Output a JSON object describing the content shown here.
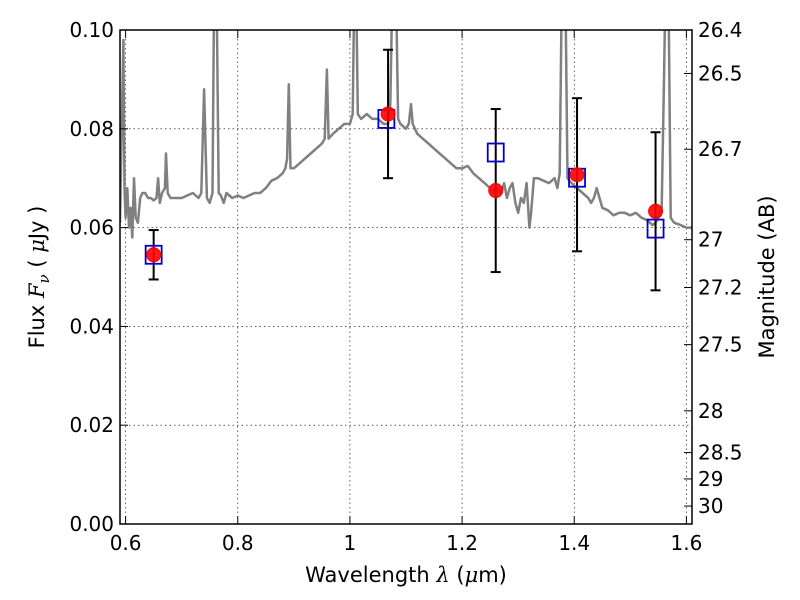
{
  "chart_data": {
    "type": "scatter",
    "xlabel": {
      "prefix": "Wavelength ",
      "symbol": "λ",
      "unit_open": " (",
      "unit_mu": "μ",
      "unit_rest": "m)"
    },
    "ylabel": {
      "prefix": "Flux ",
      "symbol": "F",
      "sub": "ν",
      "unit_open": " ( ",
      "unit_mu": "μ",
      "unit_rest": "Jy )"
    },
    "y2label": "Magnitude (AB)",
    "xlim": [
      0.59,
      1.61
    ],
    "ylim": [
      0.0,
      0.1
    ],
    "grid": true,
    "x_ticks": [
      {
        "value": 0.6,
        "label": "0.6"
      },
      {
        "value": 0.8,
        "label": "0.8"
      },
      {
        "value": 1.0,
        "label": "1"
      },
      {
        "value": 1.2,
        "label": "1.2"
      },
      {
        "value": 1.4,
        "label": "1.4"
      },
      {
        "value": 1.6,
        "label": "1.6"
      }
    ],
    "y_ticks": [
      {
        "value": 0.0,
        "label": "0.00"
      },
      {
        "value": 0.02,
        "label": "0.02"
      },
      {
        "value": 0.04,
        "label": "0.04"
      },
      {
        "value": 0.06,
        "label": "0.06"
      },
      {
        "value": 0.08,
        "label": "0.08"
      },
      {
        "value": 0.1,
        "label": "0.10"
      }
    ],
    "y2_ticks": [
      {
        "value": 26.4,
        "label": "26.4"
      },
      {
        "value": 26.5,
        "label": "26.5"
      },
      {
        "value": 26.7,
        "label": "26.7"
      },
      {
        "value": 27.0,
        "label": "27"
      },
      {
        "value": 27.2,
        "label": "27.2"
      },
      {
        "value": 27.5,
        "label": "27.5"
      },
      {
        "value": 28.0,
        "label": "28"
      },
      {
        "value": 28.5,
        "label": "28.5"
      },
      {
        "value": 29.0,
        "label": "29"
      },
      {
        "value": 30.0,
        "label": "30"
      }
    ],
    "model_spectrum": {
      "color": "#808080",
      "points": [
        [
          0.59,
          0.061
        ],
        [
          0.593,
          0.08
        ],
        [
          0.596,
          0.098
        ],
        [
          0.598,
          0.068
        ],
        [
          0.6,
          0.062
        ],
        [
          0.603,
          0.068
        ],
        [
          0.606,
          0.06
        ],
        [
          0.609,
          0.064
        ],
        [
          0.612,
          0.058
        ],
        [
          0.615,
          0.07
        ],
        [
          0.618,
          0.062
        ],
        [
          0.622,
          0.061
        ],
        [
          0.626,
          0.066
        ],
        [
          0.63,
          0.067
        ],
        [
          0.635,
          0.067
        ],
        [
          0.64,
          0.066
        ],
        [
          0.645,
          0.066
        ],
        [
          0.65,
          0.0655
        ],
        [
          0.655,
          0.066
        ],
        [
          0.658,
          0.07
        ],
        [
          0.661,
          0.065
        ],
        [
          0.665,
          0.067
        ],
        [
          0.67,
          0.068
        ],
        [
          0.672,
          0.075
        ],
        [
          0.675,
          0.067
        ],
        [
          0.68,
          0.066
        ],
        [
          0.69,
          0.066
        ],
        [
          0.7,
          0.066
        ],
        [
          0.71,
          0.0665
        ],
        [
          0.72,
          0.067
        ],
        [
          0.73,
          0.066
        ],
        [
          0.735,
          0.067
        ],
        [
          0.74,
          0.088
        ],
        [
          0.745,
          0.066
        ],
        [
          0.75,
          0.065
        ],
        [
          0.755,
          0.067
        ],
        [
          0.758,
          0.11
        ],
        [
          0.762,
          0.11
        ],
        [
          0.766,
          0.067
        ],
        [
          0.77,
          0.0665
        ],
        [
          0.775,
          0.065
        ],
        [
          0.78,
          0.067
        ],
        [
          0.79,
          0.066
        ],
        [
          0.8,
          0.0665
        ],
        [
          0.81,
          0.066
        ],
        [
          0.82,
          0.0665
        ],
        [
          0.83,
          0.067
        ],
        [
          0.84,
          0.067
        ],
        [
          0.85,
          0.068
        ],
        [
          0.86,
          0.0695
        ],
        [
          0.87,
          0.07
        ],
        [
          0.88,
          0.071
        ],
        [
          0.885,
          0.072
        ],
        [
          0.888,
          0.074
        ],
        [
          0.891,
          0.089
        ],
        [
          0.894,
          0.072
        ],
        [
          0.9,
          0.072
        ],
        [
          0.91,
          0.073
        ],
        [
          0.92,
          0.074
        ],
        [
          0.93,
          0.075
        ],
        [
          0.94,
          0.076
        ],
        [
          0.95,
          0.077
        ],
        [
          0.955,
          0.078
        ],
        [
          0.959,
          0.092
        ],
        [
          0.962,
          0.078
        ],
        [
          0.97,
          0.079
        ],
        [
          0.98,
          0.08
        ],
        [
          0.99,
          0.081
        ],
        [
          1.0,
          0.081
        ],
        [
          1.005,
          0.083
        ],
        [
          1.008,
          0.11
        ],
        [
          1.011,
          0.11
        ],
        [
          1.014,
          0.083
        ],
        [
          1.02,
          0.082
        ],
        [
          1.025,
          0.0825
        ],
        [
          1.03,
          0.083
        ],
        [
          1.04,
          0.082
        ],
        [
          1.05,
          0.082
        ],
        [
          1.06,
          0.081
        ],
        [
          1.068,
          0.081
        ],
        [
          1.072,
          0.085
        ],
        [
          1.076,
          0.11
        ],
        [
          1.082,
          0.11
        ],
        [
          1.086,
          0.082
        ],
        [
          1.09,
          0.081
        ],
        [
          1.1,
          0.08
        ],
        [
          1.105,
          0.081
        ],
        [
          1.109,
          0.085
        ],
        [
          1.112,
          0.081
        ],
        [
          1.12,
          0.079
        ],
        [
          1.13,
          0.078
        ],
        [
          1.14,
          0.077
        ],
        [
          1.15,
          0.076
        ],
        [
          1.16,
          0.075
        ],
        [
          1.17,
          0.074
        ],
        [
          1.18,
          0.073
        ],
        [
          1.19,
          0.072
        ],
        [
          1.2,
          0.072
        ],
        [
          1.21,
          0.0725
        ],
        [
          1.22,
          0.071
        ],
        [
          1.23,
          0.07
        ],
        [
          1.24,
          0.069
        ],
        [
          1.25,
          0.068
        ],
        [
          1.255,
          0.067
        ],
        [
          1.26,
          0.068
        ],
        [
          1.27,
          0.067
        ],
        [
          1.275,
          0.069
        ],
        [
          1.28,
          0.066
        ],
        [
          1.285,
          0.068
        ],
        [
          1.29,
          0.069
        ],
        [
          1.295,
          0.065
        ],
        [
          1.3,
          0.063
        ],
        [
          1.305,
          0.066
        ],
        [
          1.31,
          0.065
        ],
        [
          1.315,
          0.069
        ],
        [
          1.32,
          0.06
        ],
        [
          1.323,
          0.063
        ],
        [
          1.328,
          0.07
        ],
        [
          1.335,
          0.07
        ],
        [
          1.345,
          0.0695
        ],
        [
          1.355,
          0.069
        ],
        [
          1.365,
          0.07
        ],
        [
          1.37,
          0.068
        ],
        [
          1.374,
          0.071
        ],
        [
          1.378,
          0.11
        ],
        [
          1.384,
          0.11
        ],
        [
          1.388,
          0.07
        ],
        [
          1.395,
          0.069
        ],
        [
          1.405,
          0.068
        ],
        [
          1.415,
          0.067
        ],
        [
          1.425,
          0.066
        ],
        [
          1.43,
          0.065
        ],
        [
          1.435,
          0.066
        ],
        [
          1.44,
          0.068
        ],
        [
          1.445,
          0.066
        ],
        [
          1.45,
          0.064
        ],
        [
          1.46,
          0.0635
        ],
        [
          1.47,
          0.0625
        ],
        [
          1.48,
          0.063
        ],
        [
          1.49,
          0.063
        ],
        [
          1.5,
          0.0625
        ],
        [
          1.51,
          0.063
        ],
        [
          1.52,
          0.062
        ],
        [
          1.53,
          0.0615
        ],
        [
          1.54,
          0.0605
        ],
        [
          1.545,
          0.061
        ],
        [
          1.55,
          0.062
        ],
        [
          1.556,
          0.064
        ],
        [
          1.56,
          0.09
        ],
        [
          1.563,
          0.11
        ],
        [
          1.568,
          0.11
        ],
        [
          1.572,
          0.062
        ],
        [
          1.578,
          0.061
        ],
        [
          1.59,
          0.0605
        ],
        [
          1.6,
          0.06
        ],
        [
          1.61,
          0.06
        ]
      ]
    },
    "model_points": {
      "color": "#0000cc",
      "marker": "open-square",
      "points": [
        {
          "x": 0.65,
          "y": 0.0545
        },
        {
          "x": 1.065,
          "y": 0.082
        },
        {
          "x": 1.26,
          "y": 0.0752
        },
        {
          "x": 1.405,
          "y": 0.0701
        },
        {
          "x": 1.545,
          "y": 0.0598
        }
      ]
    },
    "observations": {
      "color": "#ff0000",
      "marker": "filled-circle",
      "errorbar_color": "#000000",
      "points": [
        {
          "x": 0.65,
          "y": 0.0545,
          "yerr": 0.005
        },
        {
          "x": 1.068,
          "y": 0.083,
          "yerr": 0.013
        },
        {
          "x": 1.26,
          "y": 0.0675,
          "yerr": 0.0165
        },
        {
          "x": 1.405,
          "y": 0.0707,
          "yerr": 0.0155
        },
        {
          "x": 1.545,
          "y": 0.0633,
          "yerr": 0.016
        }
      ]
    }
  }
}
